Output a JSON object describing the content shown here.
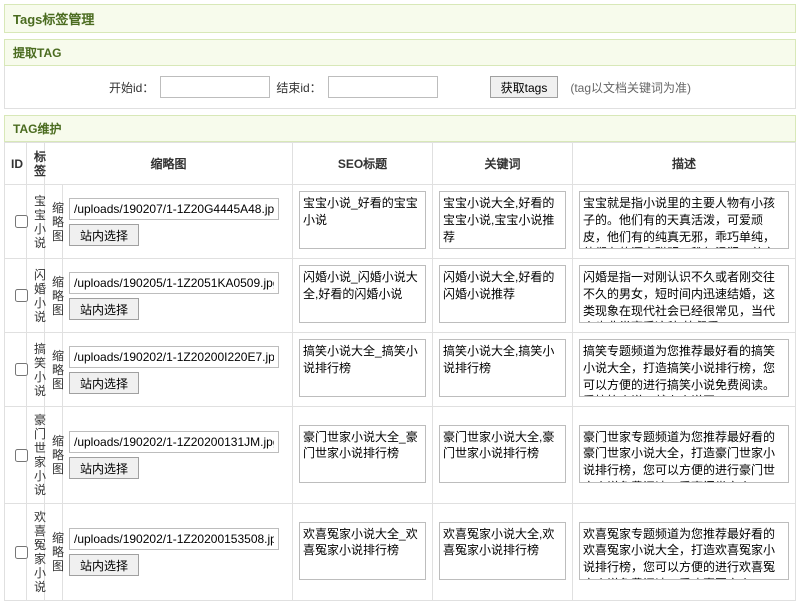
{
  "page_title": "Tags标签管理",
  "extract": {
    "panel_title": "提取TAG",
    "start_label": "开始id：",
    "end_label": "结束id：",
    "start_value": "",
    "end_value": "",
    "button_label": "获取tags",
    "hint": "(tag以文档关键词为准)"
  },
  "maintain": {
    "panel_title": "TAG维护",
    "columns": {
      "id": "ID",
      "tag": "标签",
      "thumb": "缩略图",
      "seo": "SEO标题",
      "keywords": "关键词",
      "desc": "描述"
    },
    "thumb_label": "缩略图",
    "pick_label": "站内选择",
    "rows": [
      {
        "tag": "宝宝小说",
        "thumb": "/uploads/190207/1-1Z20G4445A48.jpg",
        "seo": "宝宝小说_好看的宝宝小说",
        "keywords": "宝宝小说大全,好看的宝宝小说,宝宝小说推荐",
        "desc": "宝宝就是指小说里的主要人物有小孩子的。他们有的天真活泼，可爱顽皮，他们有的纯真无邪，乖巧单纯，他们有的漂亮聪明，稚气温润。总之宝宝呢就是这样美好的存在，而且治愈人心。快来宝宝小说的"
      },
      {
        "tag": "闪婚小说",
        "thumb": "/uploads/190205/1-1Z2051KA0509.jpg",
        "seo": "闪婚小说_闪婚小说大全,好看的闪婚小说",
        "keywords": "闪婚小说大全,好看的闪婚小说推荐",
        "desc": "闪婚是指一对刚认识不久或者刚交往不久的男女，短时间内迅速结婚，这类现象在现代社会已经很常见，当代人也非常享受这种\"快餐爱"
      },
      {
        "tag": "搞笑小说",
        "thumb": "/uploads/190202/1-1Z20200I220E7.jpg",
        "seo": "搞笑小说大全_搞笑小说排行榜",
        "keywords": "搞笑小说大全,搞笑小说排行榜",
        "desc": "搞笑专题频道为您推荐最好看的搞笑小说大全，打造搞笑小说排行榜，您可以方便的进行搞笑小说免费阅读。看搞笑小说，就上小说网。"
      },
      {
        "tag": "豪门世家小说",
        "thumb": "/uploads/190202/1-1Z20200131JM.jpg",
        "seo": "豪门世家小说大全_豪门世家小说排行榜",
        "keywords": "豪门世家小说大全,豪门世家小说排行榜",
        "desc": "豪门世家专题频道为您推荐最好看的豪门世家小说大全，打造豪门世家小说排行榜，您可以方便的进行豪门世家小说免费阅读。看豪门世家小"
      },
      {
        "tag": "欢喜冤家小说",
        "thumb": "/uploads/190202/1-1Z20200153508.jpg",
        "seo": "欢喜冤家小说大全_欢喜冤家小说排行榜",
        "keywords": "欢喜冤家小说大全,欢喜冤家小说排行榜",
        "desc": "欢喜冤家专题频道为您推荐最好看的欢喜冤家小说大全，打造欢喜冤家小说排行榜，您可以方便的进行欢喜冤家小说免费阅读。看欢喜冤家小"
      }
    ]
  }
}
